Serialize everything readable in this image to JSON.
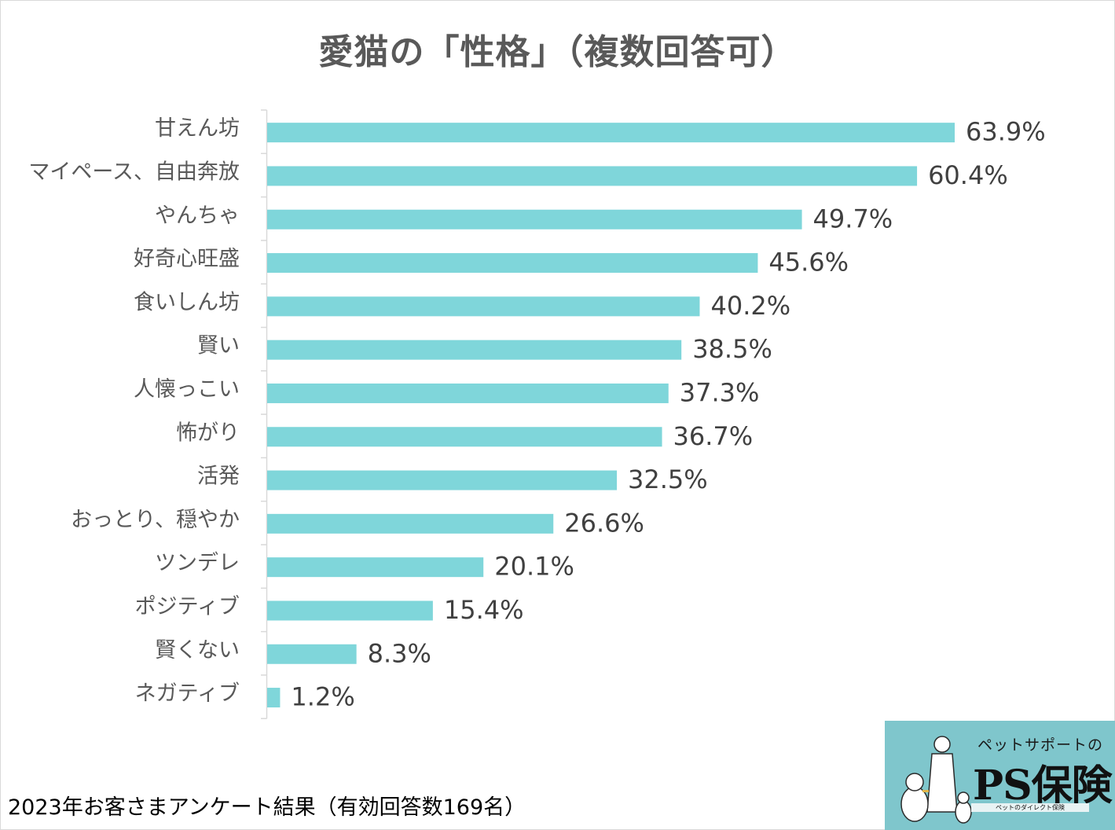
{
  "chart_data": {
    "type": "bar",
    "orientation": "horizontal",
    "title": "愛猫の「性格」（複数回答可）",
    "categories": [
      "甘えん坊",
      "マイペース、自由奔放",
      "やんちゃ",
      "好奇心旺盛",
      "食いしん坊",
      "賢い",
      "人懐っこい",
      "怖がり",
      "活発",
      "おっとり、穏やか",
      "ツンデレ",
      "ポジティブ",
      "賢くない",
      "ネガティブ"
    ],
    "values": [
      63.9,
      60.4,
      49.7,
      45.6,
      40.2,
      38.5,
      37.3,
      36.7,
      32.5,
      26.6,
      20.1,
      15.4,
      8.3,
      1.2
    ],
    "value_labels": [
      "63.9%",
      "60.4%",
      "49.7%",
      "45.6%",
      "40.2%",
      "38.5%",
      "37.3%",
      "36.7%",
      "32.5%",
      "26.6%",
      "20.1%",
      "15.4%",
      "8.3%",
      "1.2%"
    ],
    "unit": "%",
    "xlim": [
      0,
      100
    ],
    "grid": false,
    "legend": false,
    "bar_color": "#7fd6da",
    "axis_color": "#d9d9d9"
  },
  "footnote": "2023年お客さまアンケート結果（有効回答数169名）",
  "logo": {
    "tagline": "ペットサポートの",
    "brand": "PS保険",
    "strip": "ペットのダイレクト保険",
    "background": "#7fc6cc",
    "icon": "pet-owner-with-dog-and-cat-illustration"
  }
}
